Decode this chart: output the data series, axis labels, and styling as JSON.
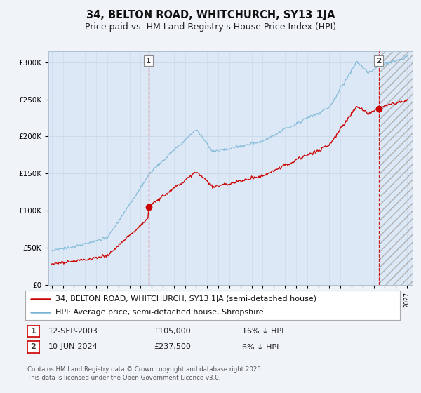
{
  "title1": "34, BELTON ROAD, WHITCHURCH, SY13 1JA",
  "title2": "Price paid vs. HM Land Registry's House Price Index (HPI)",
  "yticks": [
    0,
    50000,
    100000,
    150000,
    200000,
    250000,
    300000
  ],
  "ytick_labels": [
    "£0",
    "£50K",
    "£100K",
    "£150K",
    "£200K",
    "£250K",
    "£300K"
  ],
  "xlim_start": 1994.7,
  "xlim_end": 2027.5,
  "ylim": [
    0,
    315000
  ],
  "bg_color": "#f0f4f8",
  "plot_bg_color": "#dce8f5",
  "hpi_color": "#7ab5d8",
  "price_color": "#cc0000",
  "vline_color": "#cc0000",
  "sale1_date": 2003.71,
  "sale1_price": 105000,
  "sale1_label": "1",
  "sale2_date": 2024.44,
  "sale2_price": 237500,
  "sale2_label": "2",
  "legend_line1": "34, BELTON ROAD, WHITCHURCH, SY13 1JA (semi-detached house)",
  "legend_line2": "HPI: Average price, semi-detached house, Shropshire",
  "table_row1": [
    "1",
    "12-SEP-2003",
    "£105,000",
    "16% ↓ HPI"
  ],
  "table_row2": [
    "2",
    "10-JUN-2024",
    "£237,500",
    "6% ↓ HPI"
  ],
  "footnote": "Contains HM Land Registry data © Crown copyright and database right 2025.\nThis data is licensed under the Open Government Licence v3.0.",
  "title_fontsize": 10.5,
  "subtitle_fontsize": 9,
  "tick_fontsize": 7.5,
  "legend_fontsize": 8
}
